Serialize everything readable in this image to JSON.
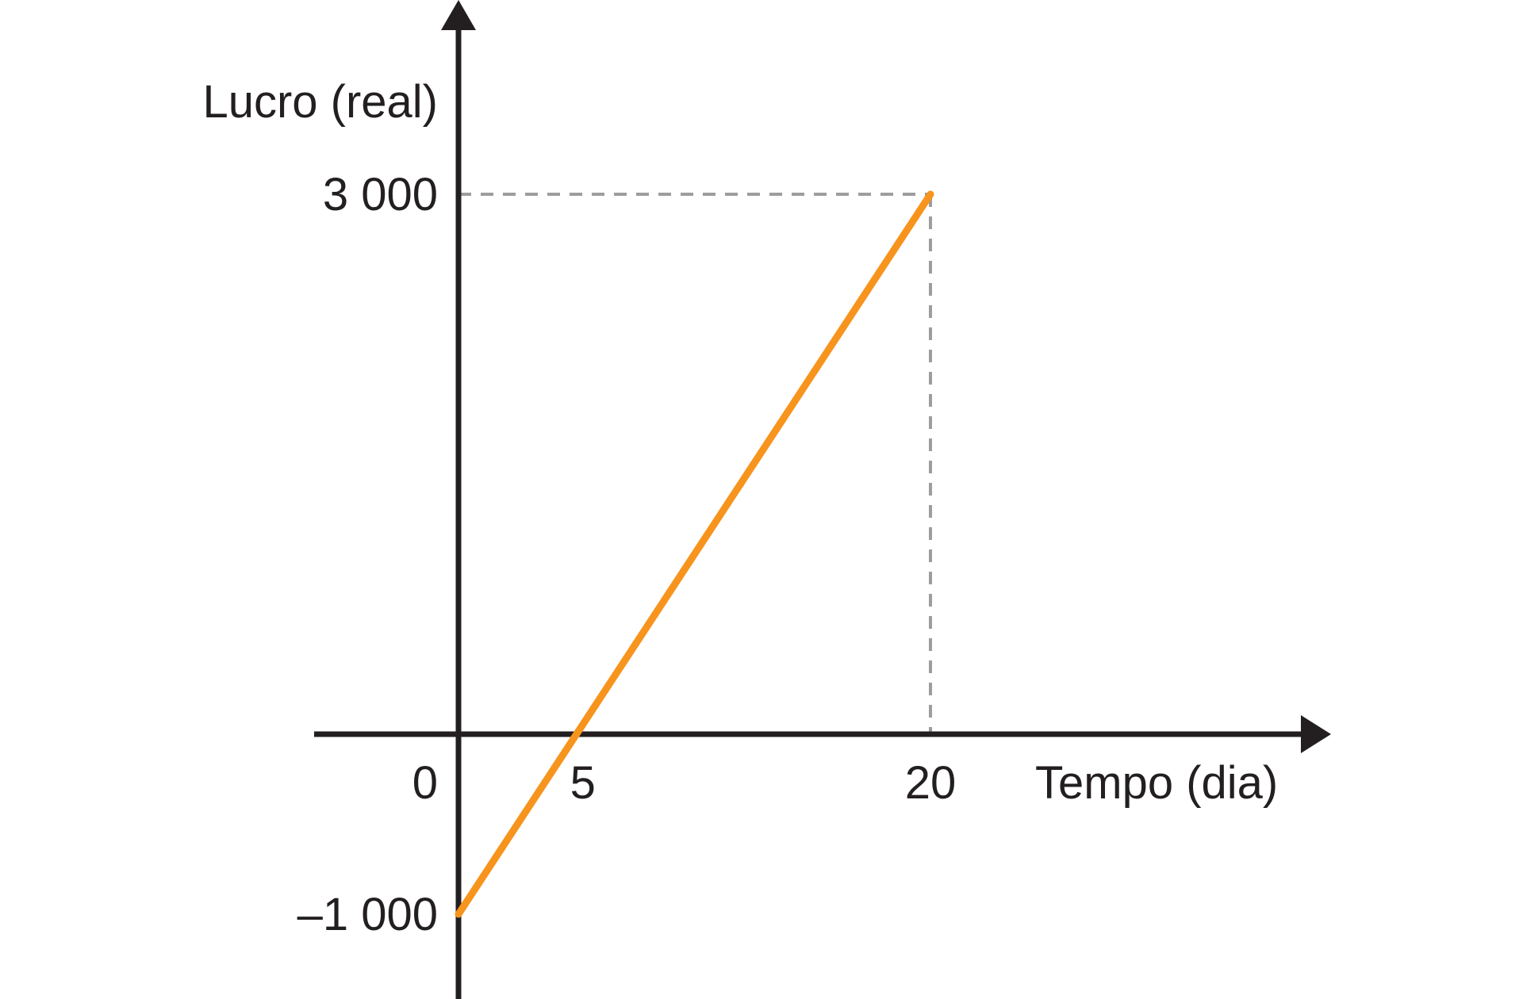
{
  "chart_data": {
    "type": "line",
    "title": "",
    "xlabel": "Tempo (dia)",
    "ylabel": "Lucro (real)",
    "x_ticks": [
      {
        "value": 0,
        "label": "0"
      },
      {
        "value": 5,
        "label": "5"
      },
      {
        "value": 20,
        "label": "20"
      }
    ],
    "y_ticks": [
      {
        "value": 3000,
        "label": "3 000"
      },
      {
        "value": -1000,
        "label": "–1 000"
      }
    ],
    "series": [
      {
        "points": [
          {
            "x": 0,
            "y": -1000
          },
          {
            "x": 5,
            "y": 0
          },
          {
            "x": 20,
            "y": 3000
          }
        ],
        "color": "#f7941d"
      }
    ],
    "reference_lines": [
      {
        "x": 20,
        "y": 3000,
        "style": "dashed",
        "color": "#9d9d9d"
      }
    ],
    "grid": false,
    "legend": "none",
    "colors": {
      "axis": "#231f20",
      "line": "#f7941d",
      "guide": "#9d9d9d"
    }
  }
}
